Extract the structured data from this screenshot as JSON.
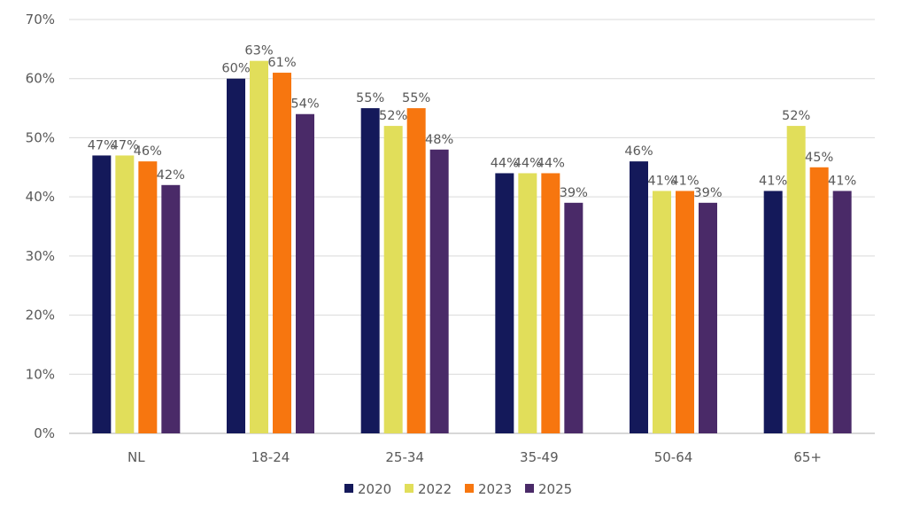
{
  "chart_data": {
    "type": "bar",
    "title": "",
    "xlabel": "",
    "ylabel": "",
    "categories": [
      "NL",
      "18-24",
      "25-34",
      "35-49",
      "50-64",
      "65+"
    ],
    "series": [
      {
        "name": "2020",
        "color": "#14195a",
        "values": [
          47,
          60,
          55,
          44,
          46,
          41
        ]
      },
      {
        "name": "2022",
        "color": "#e1de5a",
        "values": [
          47,
          63,
          52,
          44,
          41,
          52
        ]
      },
      {
        "name": "2023",
        "color": "#f7760f",
        "values": [
          46,
          61,
          55,
          44,
          41,
          45
        ]
      },
      {
        "name": "2025",
        "color": "#4a2a68",
        "values": [
          42,
          54,
          48,
          39,
          39,
          41
        ]
      }
    ],
    "ylim": [
      0,
      70
    ],
    "yticks": [
      0,
      10,
      20,
      30,
      40,
      50,
      60,
      70
    ],
    "value_format": "percent",
    "grid": true,
    "legend": "bottom-center"
  }
}
